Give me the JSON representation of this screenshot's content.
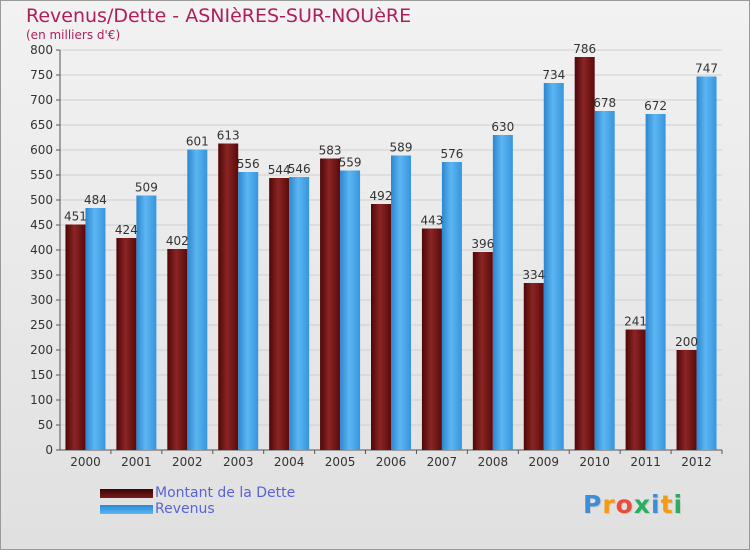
{
  "header": {
    "title": "Revenus/Dette - ASNIèRES-SUR-NOUèRE",
    "subtitle": "(en milliers d'€)"
  },
  "legend": {
    "items": [
      {
        "label": "Montant de la Dette",
        "color": "#6b0d0d"
      },
      {
        "label": "Revenus",
        "color": "#3fa0e6"
      }
    ]
  },
  "logo": {
    "letters": [
      {
        "char": "P",
        "color": "#3a8fd8"
      },
      {
        "char": "r",
        "color": "#f39c12"
      },
      {
        "char": "o",
        "color": "#e74c3c"
      },
      {
        "char": "x",
        "color": "#27ae60"
      },
      {
        "char": "i",
        "color": "#3a8fd8"
      },
      {
        "char": "t",
        "color": "#f39c12"
      },
      {
        "char": "i",
        "color": "#27ae60"
      }
    ]
  },
  "chart_data": {
    "type": "bar",
    "title": "Revenus/Dette - ASNIèRES-SUR-NOUèRE",
    "subtitle": "(en milliers d'€)",
    "categories": [
      "2000",
      "2001",
      "2002",
      "2003",
      "2004",
      "2005",
      "2006",
      "2007",
      "2008",
      "2009",
      "2010",
      "2011",
      "2012"
    ],
    "series": [
      {
        "name": "Montant de la Dette",
        "color": "#6b0d0d",
        "values": [
          451,
          424,
          402,
          613,
          544,
          583,
          492,
          443,
          396,
          334,
          786,
          241,
          200
        ]
      },
      {
        "name": "Revenus",
        "color": "#3fa0e6",
        "values": [
          484,
          509,
          601,
          556,
          546,
          559,
          589,
          576,
          630,
          734,
          678,
          672,
          747
        ]
      }
    ],
    "ylim": [
      0,
      800
    ],
    "yticks": [
      0,
      50,
      100,
      150,
      200,
      250,
      300,
      350,
      400,
      450,
      500,
      550,
      600,
      650,
      700,
      750,
      800
    ],
    "grid": true,
    "legend_position": "bottom-left"
  }
}
